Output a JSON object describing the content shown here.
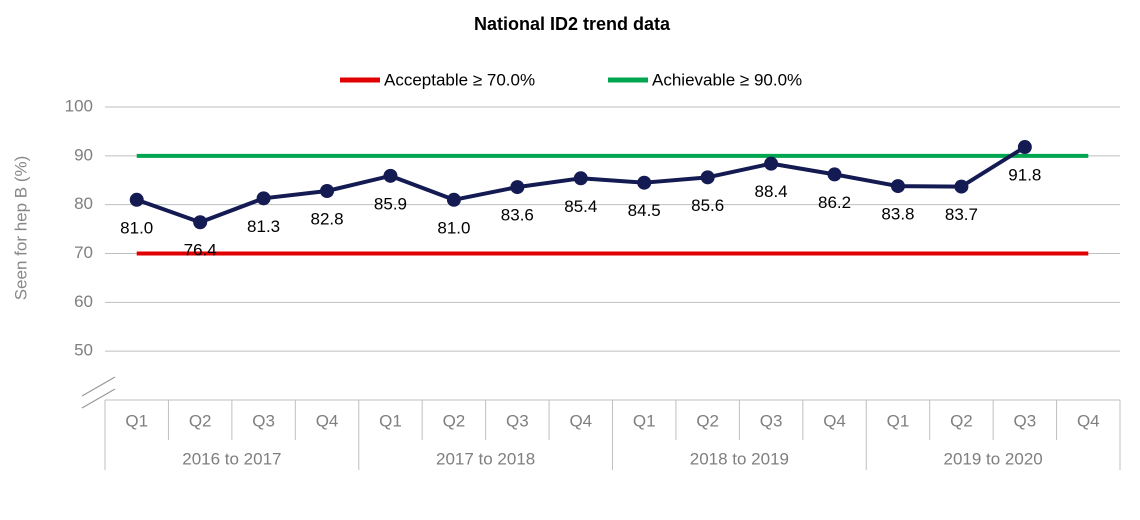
{
  "chart_data": {
    "type": "line",
    "title": "National ID2 trend data",
    "ylabel": "Seen for hep B (%)",
    "groups": [
      {
        "name": "2016 to 2017",
        "categories": [
          "Q1",
          "Q2",
          "Q3",
          "Q4"
        ]
      },
      {
        "name": "2017 to 2018",
        "categories": [
          "Q1",
          "Q2",
          "Q3",
          "Q4"
        ]
      },
      {
        "name": "2018 to 2019",
        "categories": [
          "Q1",
          "Q2",
          "Q3",
          "Q4"
        ]
      },
      {
        "name": "2019 to 2020",
        "categories": [
          "Q1",
          "Q2",
          "Q3",
          "Q4"
        ]
      }
    ],
    "series": [
      {
        "color": "#141a52",
        "values": [
          81.0,
          76.4,
          81.3,
          82.8,
          85.9,
          81.0,
          83.6,
          85.4,
          84.5,
          85.6,
          88.4,
          86.2,
          83.8,
          83.7,
          91.8,
          null
        ],
        "value_labels": [
          "81.0",
          "76.4",
          "81.3",
          "82.8",
          "85.9",
          "81.0",
          "83.6",
          "85.4",
          "84.5",
          "85.6",
          "88.4",
          "86.2",
          "83.8",
          "83.7",
          "91.8",
          null
        ]
      }
    ],
    "reference_lines": [
      {
        "label": "Acceptable ≥ 70.0%",
        "value": 70,
        "color": "#e00000"
      },
      {
        "label": "Achievable ≥ 90.0%",
        "value": 90,
        "color": "#00a550"
      }
    ],
    "ylim": [
      40,
      100
    ],
    "yticks": [
      50,
      60,
      70,
      80,
      90,
      100
    ],
    "grid": true
  }
}
